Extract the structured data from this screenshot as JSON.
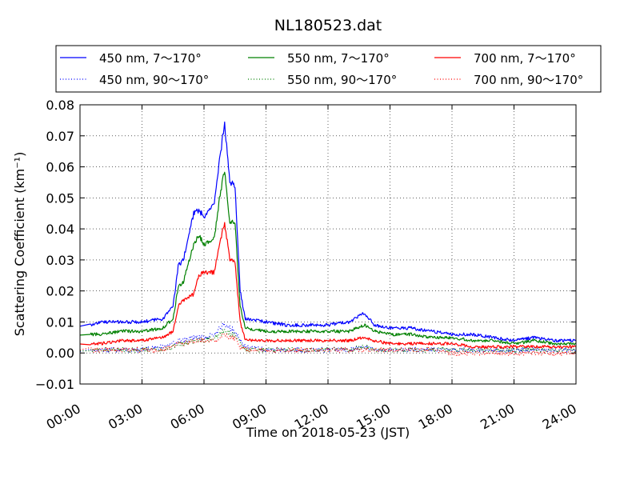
{
  "chart_data": {
    "type": "line",
    "title": "NL180523.dat",
    "xlabel": "Time on 2018-05-23 (JST)",
    "ylabel": "Scattering Coefficient (km⁻¹)",
    "ylim": [
      -0.01,
      0.08
    ],
    "xlim": [
      "00:00",
      "24:00"
    ],
    "x_ticks": [
      "00:00",
      "03:00",
      "06:00",
      "09:00",
      "12:00",
      "15:00",
      "18:00",
      "21:00",
      "24:00"
    ],
    "y_ticks": [
      "−0.01",
      "0.00",
      "0.01",
      "0.02",
      "0.03",
      "0.04",
      "0.05",
      "0.06",
      "0.07",
      "0.08"
    ],
    "grid": true,
    "legend_position": "top, outside plot, 3 columns",
    "x": [
      "00:30",
      "01:00",
      "02:00",
      "03:00",
      "04:00",
      "04:30",
      "04:45",
      "05:00",
      "05:30",
      "05:45",
      "06:00",
      "06:30",
      "06:45",
      "07:00",
      "07:15",
      "07:30",
      "07:45",
      "08:00",
      "09:00",
      "10:00",
      "11:00",
      "12:00",
      "13:00",
      "13:45",
      "14:15",
      "15:00",
      "16:00",
      "17:00",
      "18:00",
      "19:00",
      "20:00",
      "21:00",
      "22:00",
      "23:00",
      "24:00"
    ],
    "series": [
      {
        "name": "450 nm, 7～170°",
        "color": "#0000ff",
        "style": "solid",
        "values": [
          0.009,
          0.01,
          0.01,
          0.01,
          0.011,
          0.015,
          0.028,
          0.03,
          0.045,
          0.046,
          0.044,
          0.048,
          0.062,
          0.074,
          0.055,
          0.054,
          0.02,
          0.011,
          0.01,
          0.009,
          0.009,
          0.009,
          0.01,
          0.013,
          0.009,
          0.008,
          0.008,
          0.007,
          0.006,
          0.006,
          0.005,
          0.004,
          0.005,
          0.004,
          0.004
        ]
      },
      {
        "name": "450 nm, 90～170°",
        "color": "#0000ff",
        "style": "dotted",
        "values": [
          0.001,
          0.001,
          0.001,
          0.001,
          0.002,
          0.003,
          0.004,
          0.004,
          0.005,
          0.005,
          0.005,
          0.006,
          0.008,
          0.009,
          0.008,
          0.007,
          0.004,
          0.002,
          0.001,
          0.001,
          0.001,
          0.001,
          0.001,
          0.002,
          0.001,
          0.001,
          0.001,
          0.001,
          0.001,
          0.001,
          0.001,
          0.001,
          0.001,
          0.001,
          0.001
        ]
      },
      {
        "name": "550 nm, 7～170°",
        "color": "#008000",
        "style": "solid",
        "values": [
          0.006,
          0.006,
          0.007,
          0.007,
          0.008,
          0.011,
          0.021,
          0.023,
          0.035,
          0.038,
          0.035,
          0.037,
          0.05,
          0.059,
          0.042,
          0.042,
          0.015,
          0.008,
          0.007,
          0.007,
          0.007,
          0.007,
          0.007,
          0.009,
          0.007,
          0.006,
          0.006,
          0.005,
          0.005,
          0.004,
          0.004,
          0.003,
          0.004,
          0.003,
          0.003
        ]
      },
      {
        "name": "550 nm, 90～170°",
        "color": "#008000",
        "style": "dotted",
        "values": [
          0.001,
          0.001,
          0.001,
          0.001,
          0.001,
          0.002,
          0.003,
          0.003,
          0.004,
          0.004,
          0.004,
          0.005,
          0.006,
          0.007,
          0.006,
          0.006,
          0.003,
          0.001,
          0.001,
          0.001,
          0.001,
          0.001,
          0.001,
          0.002,
          0.001,
          0.001,
          0.001,
          0.001,
          0.001,
          0.001,
          0.001,
          0.001,
          0.001,
          0.001,
          0.001
        ]
      },
      {
        "name": "700 nm, 7～170°",
        "color": "#ff0000",
        "style": "solid",
        "values": [
          0.003,
          0.003,
          0.004,
          0.004,
          0.005,
          0.007,
          0.015,
          0.017,
          0.019,
          0.025,
          0.026,
          0.026,
          0.035,
          0.042,
          0.03,
          0.029,
          0.01,
          0.004,
          0.004,
          0.004,
          0.004,
          0.004,
          0.004,
          0.005,
          0.004,
          0.003,
          0.003,
          0.003,
          0.003,
          0.002,
          0.002,
          0.002,
          0.002,
          0.002,
          0.002
        ]
      },
      {
        "name": "700 nm, 90～170°",
        "color": "#ff0000",
        "style": "dotted",
        "values": [
          0.001,
          0.001,
          0.001,
          0.001,
          0.001,
          0.002,
          0.003,
          0.003,
          0.004,
          0.004,
          0.004,
          0.004,
          0.005,
          0.006,
          0.005,
          0.005,
          0.002,
          0.001,
          0.001,
          0.001,
          0.001,
          0.001,
          0.001,
          0.001,
          0.001,
          0.001,
          0.001,
          0.001,
          0.0,
          0.0,
          0.0,
          0.0,
          0.0,
          0.0,
          0.0
        ]
      }
    ]
  }
}
